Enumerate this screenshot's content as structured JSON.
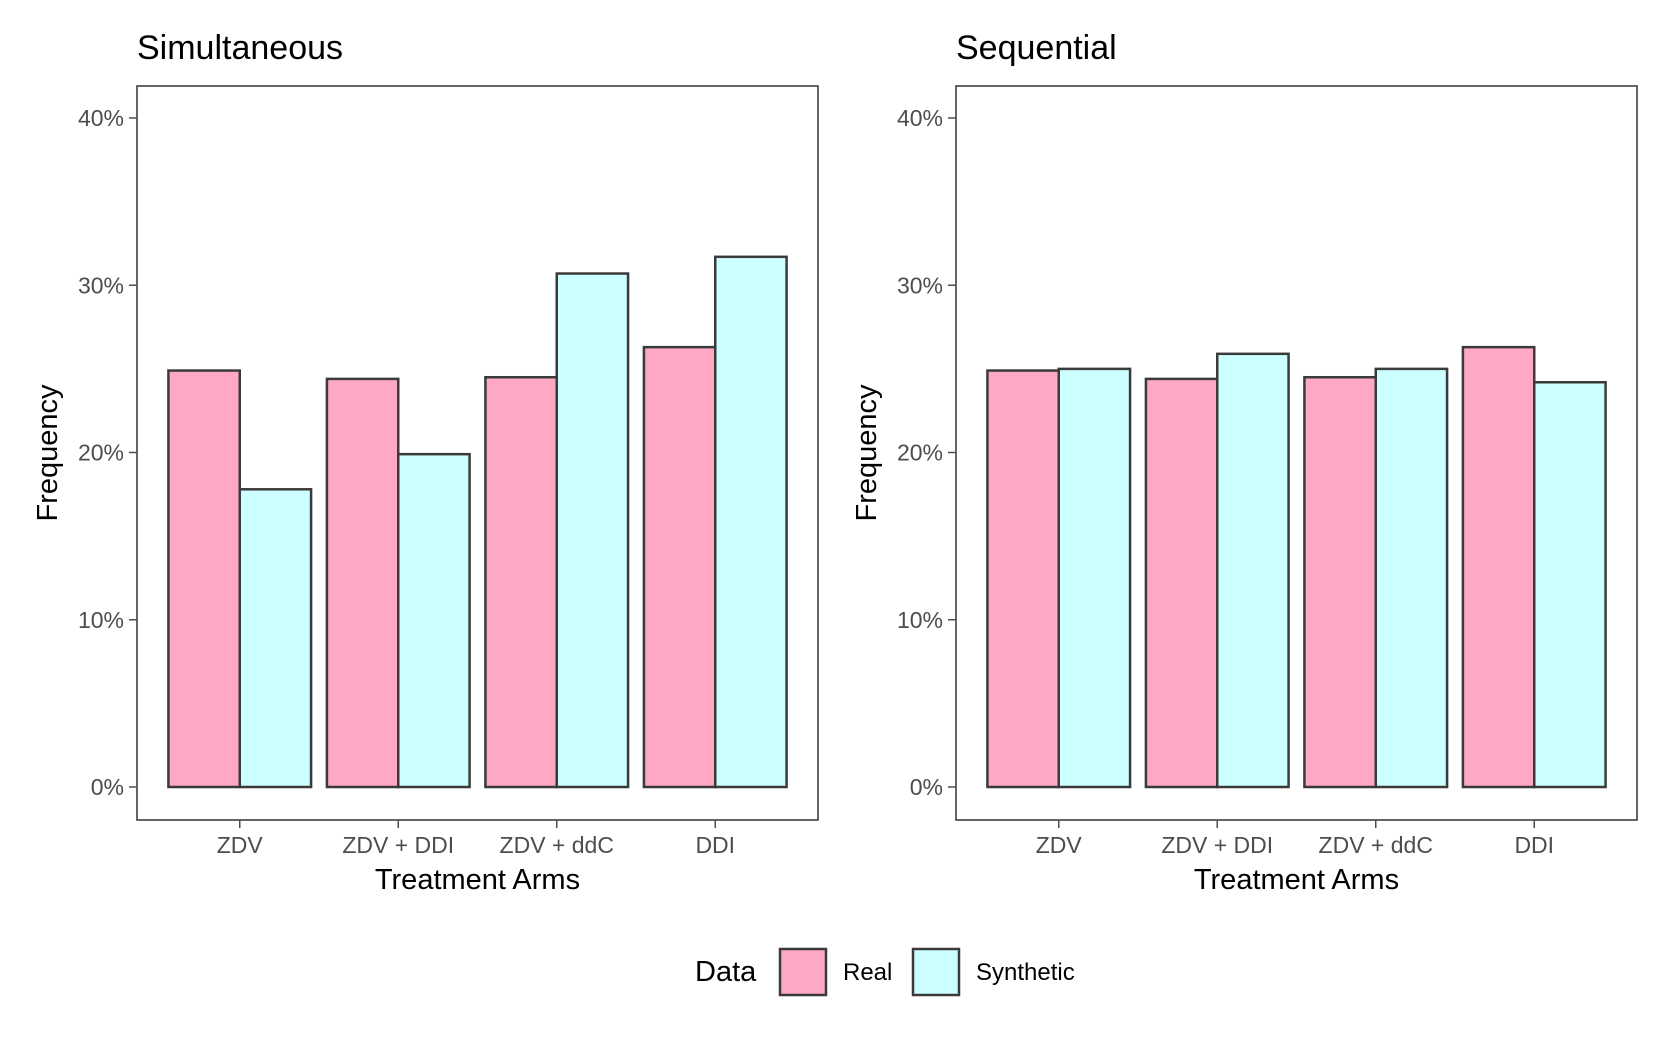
{
  "chart_data": [
    {
      "type": "bar",
      "title": "Simultaneous",
      "xlabel": "Treatment Arms",
      "ylabel": "Frequency",
      "categories": [
        "ZDV",
        "ZDV + DDI",
        "ZDV + ddC",
        "DDI"
      ],
      "yticks": [
        "0%",
        "10%",
        "20%",
        "30%",
        "40%"
      ],
      "ylim": [
        0,
        40
      ],
      "series": [
        {
          "name": "Real",
          "values": [
            24.9,
            24.4,
            24.5,
            26.3
          ]
        },
        {
          "name": "Synthetic",
          "values": [
            17.8,
            19.9,
            30.7,
            31.7
          ]
        }
      ]
    },
    {
      "type": "bar",
      "title": "Sequential",
      "xlabel": "Treatment Arms",
      "ylabel": "Frequency",
      "categories": [
        "ZDV",
        "ZDV + DDI",
        "ZDV + ddC",
        "DDI"
      ],
      "yticks": [
        "0%",
        "10%",
        "20%",
        "30%",
        "40%"
      ],
      "ylim": [
        0,
        40
      ],
      "series": [
        {
          "name": "Real",
          "values": [
            24.9,
            24.4,
            24.5,
            26.3
          ]
        },
        {
          "name": "Synthetic",
          "values": [
            25.0,
            25.9,
            25.0,
            24.2
          ]
        }
      ]
    }
  ],
  "legend": {
    "title": "Data",
    "items": [
      {
        "label": "Real",
        "color": "#ffa8c4"
      },
      {
        "label": "Synthetic",
        "color": "#ccffff"
      }
    ]
  },
  "colors": {
    "real": "#ffa8c4",
    "synthetic": "#ccffff",
    "bar_outline": "#3a3a3a",
    "panel_border": "#333333",
    "tick": "#4d4d4d"
  }
}
